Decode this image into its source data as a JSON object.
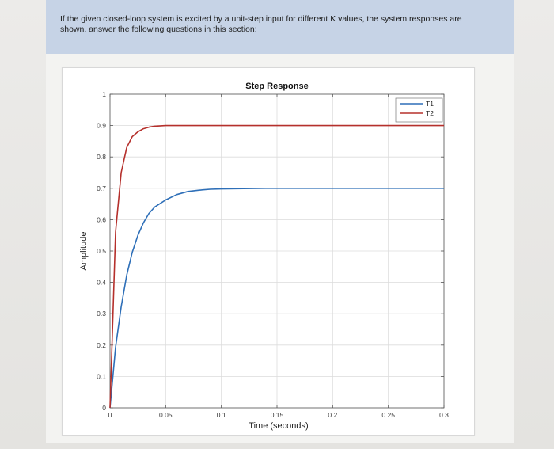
{
  "question": {
    "text": "If the given closed-loop system is excited by a unit-step input for different K values, the system responses are shown. answer the following questions in this section:"
  },
  "colors": {
    "T1": "#2e6fb8",
    "T2": "#b5302c",
    "panel": "#c6d3e6"
  },
  "chart_data": {
    "type": "line",
    "title": "Step Response",
    "xlabel": "Time (seconds)",
    "ylabel": "Amplitude",
    "xlim": [
      0,
      0.3
    ],
    "ylim": [
      0,
      1
    ],
    "grid": true,
    "legend_position": "top-right",
    "x_ticks": [
      "0",
      "0.05",
      "0.1",
      "0.15",
      "0.2",
      "0.25",
      "0.3"
    ],
    "y_ticks": [
      "0",
      "0.1",
      "0.2",
      "0.3",
      "0.4",
      "0.5",
      "0.6",
      "0.7",
      "0.8",
      "0.9",
      "1"
    ],
    "x": [
      0,
      0.005,
      0.01,
      0.015,
      0.02,
      0.025,
      0.03,
      0.035,
      0.04,
      0.05,
      0.06,
      0.07,
      0.08,
      0.09,
      0.1,
      0.12,
      0.14,
      0.16,
      0.18,
      0.2,
      0.25,
      0.3
    ],
    "series": [
      {
        "name": "T1",
        "values": [
          0,
          0.193,
          0.322,
          0.423,
          0.496,
          0.55,
          0.59,
          0.62,
          0.64,
          0.663,
          0.68,
          0.69,
          0.694,
          0.697,
          0.698,
          0.699,
          0.7,
          0.7,
          0.7,
          0.7,
          0.7,
          0.7
        ]
      },
      {
        "name": "T2",
        "values": [
          0,
          0.56,
          0.75,
          0.83,
          0.865,
          0.88,
          0.89,
          0.895,
          0.898,
          0.9,
          0.9,
          0.9,
          0.9,
          0.9,
          0.9,
          0.9,
          0.9,
          0.9,
          0.9,
          0.9,
          0.9,
          0.9
        ]
      }
    ]
  }
}
